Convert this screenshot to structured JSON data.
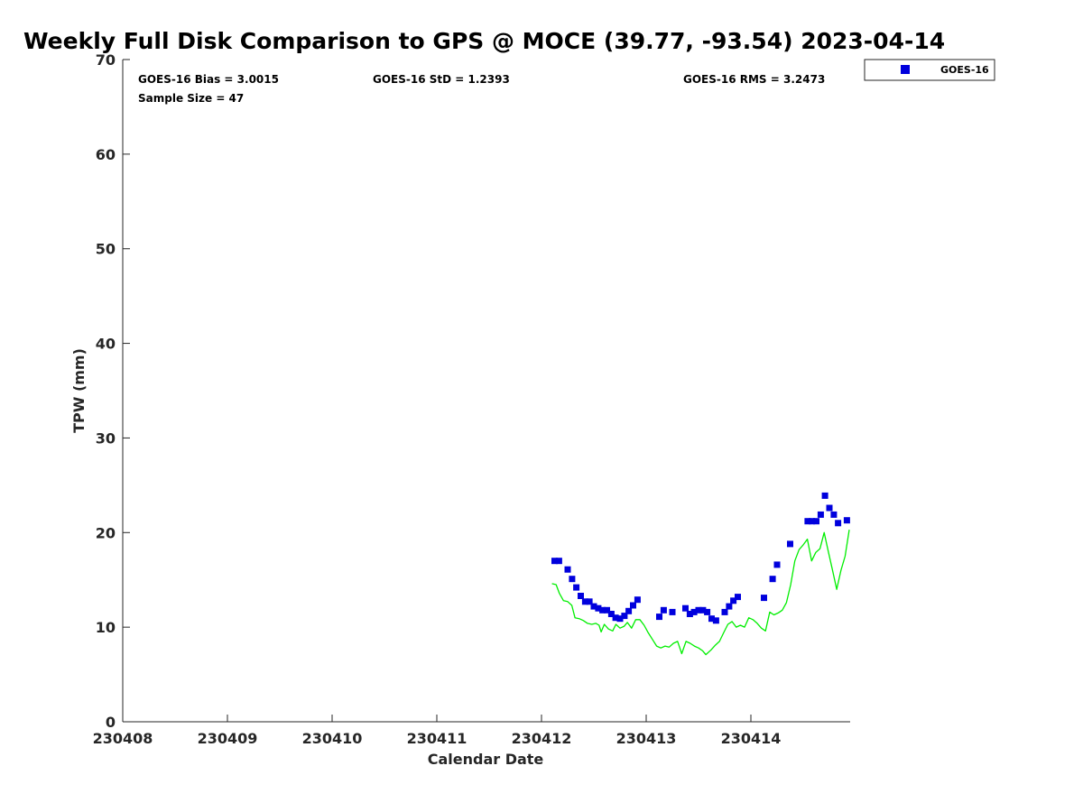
{
  "chart_data": {
    "type": "scatter",
    "title": "Weekly Full Disk Comparison to GPS @ MOCE (39.77, -93.54) 2023-04-14",
    "xlabel": "Calendar Date",
    "ylabel": "TPW (mm)",
    "xlim": [
      230408,
      230414.95
    ],
    "ylim": [
      0,
      70
    ],
    "x_ticks": [
      230408,
      230409,
      230410,
      230411,
      230412,
      230413,
      230414
    ],
    "x_tick_labels": [
      "230408",
      "230409",
      "230410",
      "230411",
      "230412",
      "230413",
      "230414"
    ],
    "y_ticks": [
      0,
      10,
      20,
      30,
      40,
      50,
      60,
      70
    ],
    "y_tick_labels": [
      "0",
      "10",
      "20",
      "30",
      "40",
      "50",
      "60",
      "70"
    ],
    "stats": {
      "bias": "GOES-16 Bias = 3.0015",
      "std": "GOES-16 StD = 1.2393",
      "rms": "GOES-16 RMS = 3.2473",
      "sample_size": "Sample Size = 47"
    },
    "legend": {
      "label": "GOES-16",
      "location": "top-right"
    },
    "series": [
      {
        "name": "GOES-16",
        "style": "square-markers",
        "color": "#0000dd",
        "x": [
          230412.125,
          230412.167,
          230412.25,
          230412.292,
          230412.333,
          230412.375,
          230412.417,
          230412.458,
          230412.5,
          230412.542,
          230412.583,
          230412.625,
          230412.667,
          230412.708,
          230412.75,
          230412.792,
          230412.833,
          230412.875,
          230412.917,
          230413.125,
          230413.167,
          230413.25,
          230413.375,
          230413.417,
          230413.458,
          230413.5,
          230413.542,
          230413.583,
          230413.625,
          230413.667,
          230413.75,
          230413.792,
          230413.833,
          230413.875,
          230414.125,
          230414.208,
          230414.25,
          230414.375,
          230414.542,
          230414.583,
          230414.625,
          230414.667,
          230414.708,
          230414.75,
          230414.792,
          230414.833,
          230414.917
        ],
        "values": [
          17.0,
          17.0,
          16.1,
          15.1,
          14.2,
          13.3,
          12.7,
          12.7,
          12.2,
          12.0,
          11.8,
          11.8,
          11.4,
          11.0,
          10.9,
          11.2,
          11.7,
          12.3,
          12.9,
          11.1,
          11.8,
          11.6,
          12.0,
          11.4,
          11.6,
          11.8,
          11.8,
          11.6,
          10.9,
          10.7,
          11.6,
          12.2,
          12.8,
          13.2,
          13.1,
          15.1,
          16.6,
          18.8,
          21.2,
          21.2,
          21.2,
          21.9,
          23.9,
          22.6,
          21.9,
          21.0,
          21.3
        ]
      },
      {
        "name": "GPS",
        "style": "line",
        "color": "#00ee00",
        "x": [
          230412.1,
          230412.14,
          230412.17,
          230412.21,
          230412.25,
          230412.29,
          230412.32,
          230412.36,
          230412.4,
          230412.44,
          230412.48,
          230412.52,
          230412.55,
          230412.57,
          230412.6,
          230412.64,
          230412.68,
          230412.71,
          230412.75,
          230412.79,
          230412.82,
          230412.86,
          230412.9,
          230412.94,
          230412.98,
          230413.02,
          230413.06,
          230413.1,
          230413.14,
          230413.18,
          230413.22,
          230413.26,
          230413.3,
          230413.34,
          230413.38,
          230413.42,
          230413.46,
          230413.5,
          230413.54,
          230413.57,
          230413.62,
          230413.66,
          230413.7,
          230413.74,
          230413.78,
          230413.82,
          230413.86,
          230413.9,
          230413.94,
          230413.98,
          230414.02,
          230414.06,
          230414.1,
          230414.14,
          230414.18,
          230414.22,
          230414.26,
          230414.3,
          230414.34,
          230414.38,
          230414.42,
          230414.46,
          230414.5,
          230414.54,
          230414.58,
          230414.62,
          230414.66,
          230414.7,
          230414.74,
          230414.78,
          230414.82,
          230414.86,
          230414.9,
          230414.94
        ],
        "values": [
          14.6,
          14.5,
          13.6,
          12.8,
          12.7,
          12.3,
          11.0,
          10.9,
          10.7,
          10.4,
          10.3,
          10.4,
          10.2,
          9.5,
          10.3,
          9.8,
          9.6,
          10.3,
          9.9,
          10.1,
          10.5,
          9.9,
          10.8,
          10.8,
          10.2,
          9.4,
          8.7,
          8.0,
          7.8,
          8.0,
          7.9,
          8.3,
          8.5,
          7.2,
          8.5,
          8.3,
          8.0,
          7.8,
          7.5,
          7.1,
          7.6,
          8.1,
          8.5,
          9.4,
          10.3,
          10.6,
          10.0,
          10.2,
          10.0,
          11.0,
          10.8,
          10.4,
          9.9,
          9.6,
          11.6,
          11.3,
          11.5,
          11.8,
          12.6,
          14.5,
          17.0,
          18.2,
          18.7,
          19.3,
          17.0,
          17.9,
          18.3,
          20.0,
          18.0,
          16.0,
          14.0,
          16.0,
          17.5,
          20.3
        ]
      }
    ]
  }
}
